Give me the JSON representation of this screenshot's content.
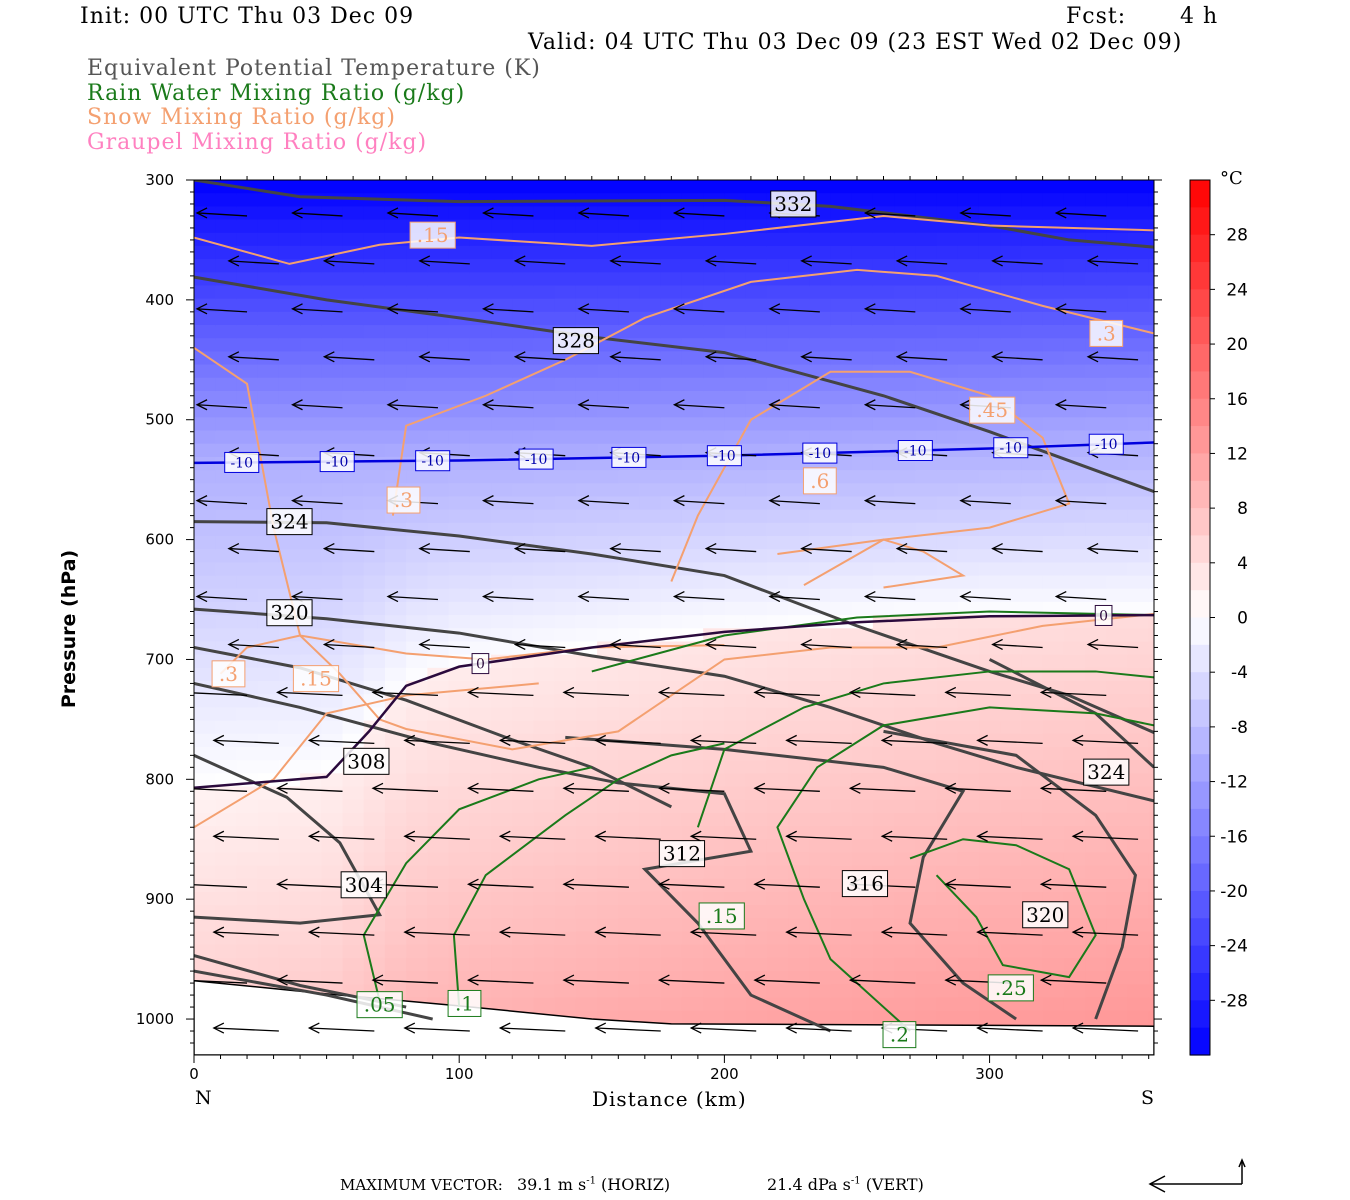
{
  "header": {
    "init": "Init: 00 UTC Thu 03 Dec 09",
    "fcst_label": "Fcst:",
    "fcst_value": "4 h",
    "valid": "Valid: 04 UTC Thu 03 Dec 09 (23 EST Wed 02 Dec 09)"
  },
  "legend": [
    {
      "label": "Equivalent Potential Temperature (K)",
      "color": "#555555"
    },
    {
      "label": "Rain Water Mixing Ratio (g/kg)",
      "color": "#1a7a1a"
    },
    {
      "label": "Snow Mixing Ratio (g/kg)",
      "color": "#f4a070"
    },
    {
      "label": "Graupel Mixing Ratio (g/kg)",
      "color": "#ff80c0"
    }
  ],
  "footer": {
    "max_vector_label": "MAXIMUM VECTOR:",
    "horiz_value": "39.1",
    "horiz_unit": "m s",
    "horiz_exp": "-1",
    "horiz_tag": "(HORIZ)",
    "vert_value": "21.4",
    "vert_unit": "dPa s",
    "vert_exp": "-1",
    "vert_tag": "(VERT)"
  },
  "chart_data": {
    "type": "cross-section",
    "xlabel": "Distance (km)",
    "ylabel": "Pressure (hPa)",
    "xlim": [
      0,
      362
    ],
    "ylim": [
      1030,
      300
    ],
    "x_ticks": [
      0,
      100,
      200,
      300
    ],
    "y_ticks": [
      300,
      400,
      500,
      600,
      700,
      800,
      900,
      1000
    ],
    "x_end_labels": {
      "left": "N",
      "right": "S"
    },
    "colorbar": {
      "unit": "°C",
      "min": -32,
      "max": 32,
      "ticks": [
        28,
        24,
        20,
        16,
        12,
        8,
        4,
        0,
        -4,
        -8,
        -12,
        -16,
        -20,
        -24,
        -28
      ],
      "cold_color": "#0000ff",
      "neutral_color": "#ffffff",
      "warm_color": "#ff0000"
    },
    "temperature_isolines": [
      {
        "value": -10,
        "label": "-10",
        "color": "#0000dd",
        "points": [
          [
            0,
            536
          ],
          [
            100,
            534
          ],
          [
            200,
            530
          ],
          [
            300,
            524
          ],
          [
            362,
            519
          ]
        ],
        "label_x": [
          18,
          54,
          90,
          129,
          164,
          200,
          236,
          272,
          308,
          344
        ]
      },
      {
        "value": 0,
        "label": "0",
        "color": "#2b0a3d",
        "points": [
          [
            0,
            807
          ],
          [
            50,
            798
          ],
          [
            66,
            760
          ],
          [
            80,
            722
          ],
          [
            100,
            706
          ],
          [
            150,
            690
          ],
          [
            200,
            677
          ],
          [
            250,
            669
          ],
          [
            300,
            664
          ],
          [
            362,
            663
          ]
        ],
        "label_x": [
          108,
          343
        ]
      }
    ],
    "theta_e_contours": [
      {
        "label": "332",
        "label_pos": [
          226,
          320
        ],
        "points": [
          [
            0,
            300
          ],
          [
            40,
            314
          ],
          [
            100,
            318
          ],
          [
            200,
            317
          ],
          [
            240,
            322
          ],
          [
            300,
            338
          ],
          [
            330,
            350
          ],
          [
            362,
            356
          ]
        ]
      },
      {
        "label": "328",
        "label_pos": [
          144,
          434
        ],
        "points": [
          [
            0,
            381
          ],
          [
            50,
            400
          ],
          [
            100,
            415
          ],
          [
            150,
            431
          ],
          [
            200,
            444
          ],
          [
            230,
            462
          ],
          [
            260,
            480
          ],
          [
            300,
            510
          ],
          [
            362,
            560
          ]
        ]
      },
      {
        "label": "324",
        "label_pos": [
          36,
          585
        ],
        "points": [
          [
            0,
            585
          ],
          [
            50,
            586
          ],
          [
            100,
            597
          ],
          [
            150,
            612
          ],
          [
            200,
            630
          ],
          [
            250,
            672
          ],
          [
            300,
            710
          ],
          [
            330,
            730
          ],
          [
            362,
            761
          ]
        ]
      },
      {
        "label": "320",
        "label_pos": [
          36,
          661
        ],
        "points": [
          [
            0,
            658
          ],
          [
            50,
            666
          ],
          [
            100,
            678
          ],
          [
            150,
            697
          ],
          [
            200,
            714
          ],
          [
            240,
            740
          ],
          [
            280,
            770
          ],
          [
            310,
            790
          ],
          [
            362,
            818
          ]
        ]
      },
      {
        "label": "308",
        "label_pos": [
          65,
          785
        ],
        "points": [
          [
            0,
            690
          ],
          [
            40,
            707
          ],
          [
            80,
            734
          ],
          [
            120,
            767
          ],
          [
            150,
            790
          ],
          [
            180,
            823
          ]
        ]
      },
      {
        "label": "312",
        "label_pos": [
          184,
          862
        ],
        "points": [
          [
            0,
            720
          ],
          [
            40,
            740
          ],
          [
            90,
            770
          ],
          [
            130,
            790
          ],
          [
            160,
            803
          ],
          [
            200,
            812
          ],
          [
            210,
            860
          ],
          [
            170,
            875
          ],
          [
            190,
            920
          ],
          [
            210,
            980
          ],
          [
            240,
            1010
          ]
        ]
      },
      {
        "label": "316",
        "label_pos": [
          253,
          887
        ],
        "points": [
          [
            140,
            765
          ],
          [
            200,
            775
          ],
          [
            260,
            790
          ],
          [
            290,
            810
          ],
          [
            275,
            865
          ],
          [
            270,
            920
          ],
          [
            290,
            970
          ],
          [
            310,
            1000
          ]
        ]
      },
      {
        "label": "320",
        "label_pos": [
          321,
          913
        ],
        "points": [
          [
            260,
            760
          ],
          [
            310,
            780
          ],
          [
            340,
            830
          ],
          [
            355,
            880
          ],
          [
            350,
            940
          ],
          [
            340,
            1000
          ]
        ]
      },
      {
        "label": "324",
        "label_pos": [
          344,
          794
        ],
        "points": [
          [
            300,
            700
          ],
          [
            340,
            745
          ],
          [
            362,
            790
          ]
        ]
      },
      {
        "label": "304",
        "label_pos": [
          64,
          888
        ],
        "points": [
          [
            0,
            780
          ],
          [
            35,
            815
          ],
          [
            55,
            853
          ],
          [
            70,
            913
          ],
          [
            40,
            920
          ],
          [
            0,
            915
          ]
        ]
      },
      {
        "label": "",
        "label_pos": null,
        "points": [
          [
            0,
            947
          ],
          [
            40,
            972
          ],
          [
            80,
            990
          ]
        ]
      },
      {
        "label": "",
        "label_pos": null,
        "points": [
          [
            0,
            960
          ],
          [
            50,
            980
          ],
          [
            90,
            1000
          ]
        ]
      }
    ],
    "rain_contours": [
      {
        "label": ".05",
        "label_pos": [
          70,
          988
        ],
        "points": [
          [
            70,
            985
          ],
          [
            64,
            930
          ],
          [
            80,
            870
          ],
          [
            100,
            825
          ],
          [
            130,
            800
          ],
          [
            150,
            790
          ]
        ]
      },
      {
        "label": ".1",
        "label_pos": [
          102,
          987
        ],
        "points": [
          [
            100,
            990
          ],
          [
            98,
            930
          ],
          [
            110,
            880
          ],
          [
            140,
            830
          ],
          [
            160,
            800
          ],
          [
            180,
            780
          ],
          [
            200,
            770
          ]
        ]
      },
      {
        "label": ".15",
        "label_pos": [
          199,
          914
        ],
        "points": [
          [
            190,
            840
          ],
          [
            200,
            775
          ],
          [
            230,
            740
          ],
          [
            260,
            720
          ],
          [
            300,
            710
          ],
          [
            340,
            710
          ],
          [
            362,
            715
          ]
        ]
      },
      {
        "label": ".2",
        "label_pos": [
          266,
          1013
        ],
        "points": [
          [
            270,
            1010
          ],
          [
            240,
            950
          ],
          [
            230,
            900
          ],
          [
            220,
            840
          ],
          [
            235,
            790
          ],
          [
            260,
            755
          ],
          [
            300,
            740
          ],
          [
            340,
            745
          ],
          [
            362,
            755
          ]
        ]
      },
      {
        "label": ".25",
        "label_pos": [
          308,
          974
        ],
        "points": [
          [
            270,
            866
          ],
          [
            290,
            850
          ],
          [
            310,
            855
          ],
          [
            330,
            875
          ],
          [
            340,
            930
          ],
          [
            330,
            965
          ],
          [
            305,
            955
          ],
          [
            295,
            915
          ],
          [
            280,
            880
          ]
        ]
      },
      {
        "label": "",
        "label_pos": null,
        "points": [
          [
            150,
            710
          ],
          [
            200,
            680
          ],
          [
            250,
            665
          ],
          [
            300,
            660
          ],
          [
            362,
            663
          ]
        ]
      }
    ],
    "snow_contours": [
      {
        "label": ".15",
        "label_pos": [
          90,
          346
        ],
        "points": [
          [
            0,
            348
          ],
          [
            36,
            370
          ],
          [
            70,
            354
          ],
          [
            100,
            348
          ],
          [
            150,
            355
          ],
          [
            200,
            345
          ],
          [
            260,
            330
          ],
          [
            300,
            338
          ],
          [
            362,
            342
          ]
        ]
      },
      {
        "label": ".3",
        "label_pos": [
          344,
          428
        ],
        "points": [
          [
            0,
            440
          ],
          [
            20,
            470
          ],
          [
            30,
            590
          ],
          [
            40,
            680
          ],
          [
            55,
            712
          ],
          [
            70,
            750
          ],
          [
            80,
            758
          ],
          [
            120,
            775
          ],
          [
            160,
            760
          ],
          [
            200,
            700
          ],
          [
            240,
            690
          ],
          [
            280,
            690
          ],
          [
            320,
            672
          ],
          [
            362,
            662
          ]
        ]
      },
      {
        "label": ".3",
        "label_pos": [
          79,
          567
        ],
        "points": [
          [
            75,
            580
          ],
          [
            80,
            505
          ],
          [
            110,
            480
          ],
          [
            140,
            450
          ],
          [
            170,
            415
          ],
          [
            210,
            385
          ],
          [
            250,
            375
          ],
          [
            280,
            380
          ],
          [
            320,
            405
          ],
          [
            362,
            428
          ]
        ]
      },
      {
        "label": ".45",
        "label_pos": [
          301,
          492
        ],
        "points": [
          [
            180,
            635
          ],
          [
            190,
            580
          ],
          [
            210,
            500
          ],
          [
            240,
            460
          ],
          [
            270,
            460
          ],
          [
            300,
            480
          ],
          [
            320,
            515
          ],
          [
            330,
            570
          ],
          [
            300,
            590
          ],
          [
            260,
            600
          ],
          [
            220,
            612
          ]
        ]
      },
      {
        "label": ".6",
        "label_pos": [
          236,
          551
        ],
        "points": [
          [
            230,
            638
          ],
          [
            260,
            600
          ],
          [
            275,
            610
          ],
          [
            290,
            630
          ],
          [
            260,
            640
          ]
        ]
      },
      {
        "label": ".15",
        "label_pos": [
          46,
          716
        ],
        "points": [
          [
            0,
            840
          ],
          [
            30,
            800
          ],
          [
            50,
            745
          ],
          [
            80,
            730
          ],
          [
            130,
            720
          ]
        ]
      },
      {
        "label": ".3",
        "label_pos": [
          13,
          712
        ],
        "points": [
          [
            10,
            712
          ],
          [
            20,
            690
          ],
          [
            40,
            680
          ],
          [
            80,
            695
          ],
          [
            110,
            700
          ],
          [
            150,
            690
          ],
          [
            200,
            688
          ]
        ]
      }
    ],
    "ground_pressure_by_distance": [
      [
        0,
        968
      ],
      [
        50,
        979
      ],
      [
        100,
        989
      ],
      [
        150,
        1000
      ],
      [
        180,
        1004
      ],
      [
        362,
        1006
      ]
    ]
  }
}
